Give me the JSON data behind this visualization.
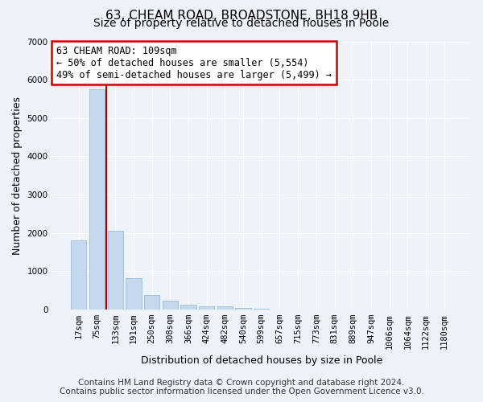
{
  "title1": "63, CHEAM ROAD, BROADSTONE, BH18 9HB",
  "title2": "Size of property relative to detached houses in Poole",
  "xlabel": "Distribution of detached houses by size in Poole",
  "ylabel": "Number of detached properties",
  "bar_color": "#c5d8ed",
  "bar_edge_color": "#8ab4d4",
  "highlight_line_color": "#aa0000",
  "annotation_box_color": "#cc0000",
  "categories": [
    "17sqm",
    "75sqm",
    "133sqm",
    "191sqm",
    "250sqm",
    "308sqm",
    "366sqm",
    "424sqm",
    "482sqm",
    "540sqm",
    "599sqm",
    "657sqm",
    "715sqm",
    "773sqm",
    "831sqm",
    "889sqm",
    "947sqm",
    "1006sqm",
    "1064sqm",
    "1122sqm",
    "1180sqm"
  ],
  "values": [
    1800,
    5750,
    2050,
    820,
    370,
    230,
    120,
    75,
    90,
    45,
    30,
    0,
    0,
    0,
    0,
    0,
    0,
    0,
    0,
    0,
    0
  ],
  "ylim": [
    0,
    7000
  ],
  "yticks": [
    0,
    1000,
    2000,
    3000,
    4000,
    5000,
    6000,
    7000
  ],
  "annotation_line1": "63 CHEAM ROAD: 109sqm",
  "annotation_line2": "← 50% of detached houses are smaller (5,554)",
  "annotation_line3": "49% of semi-detached houses are larger (5,499) →",
  "vline_x_index": 1.5,
  "footer1": "Contains HM Land Registry data © Crown copyright and database right 2024.",
  "footer2": "Contains public sector information licensed under the Open Government Licence v3.0.",
  "background_color": "#eef2f9",
  "plot_background": "#eef2f9",
  "grid_color": "#ffffff",
  "title_fontsize": 11,
  "subtitle_fontsize": 10,
  "axis_label_fontsize": 9,
  "tick_fontsize": 7.5,
  "annotation_fontsize": 8.5,
  "footer_fontsize": 7.5
}
